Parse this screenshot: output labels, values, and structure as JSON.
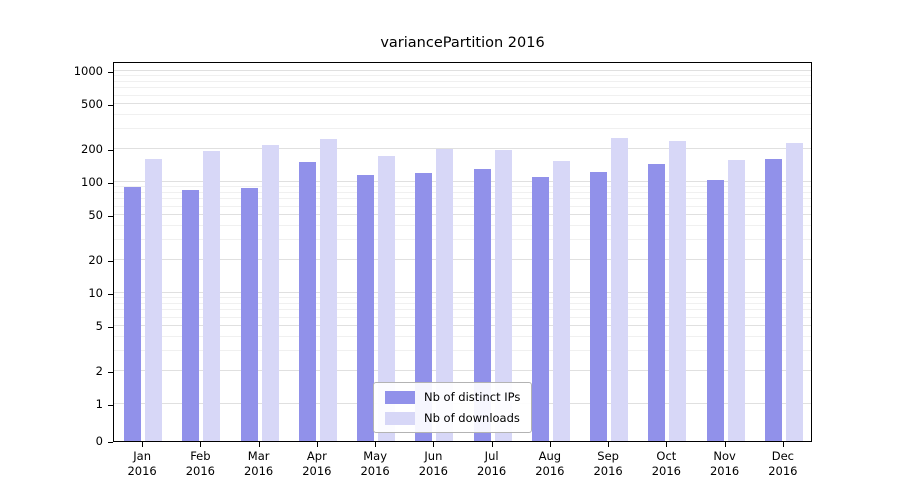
{
  "chart_data": {
    "type": "bar",
    "title": "variancePartition 2016",
    "categories": [
      "Jan 2016",
      "Feb 2016",
      "Mar 2016",
      "Apr 2016",
      "May 2016",
      "Jun 2016",
      "Jul 2016",
      "Aug 2016",
      "Sep 2016",
      "Oct 2016",
      "Nov 2016",
      "Dec 2016"
    ],
    "series": [
      {
        "name": "Nb of distinct IPs",
        "color": "#9191ea",
        "values": [
          90,
          85,
          88,
          150,
          115,
          120,
          130,
          112,
          122,
          145,
          105,
          160
        ]
      },
      {
        "name": "Nb of downloads",
        "color": "#d7d7f7",
        "values": [
          160,
          190,
          215,
          245,
          172,
          197,
          193,
          155,
          248,
          235,
          157,
          225
        ]
      }
    ],
    "xlabel": "",
    "ylabel": "",
    "yscale": "log (symlog, linear below 1)",
    "ylim": [
      0,
      1230
    ],
    "yticks": [
      0,
      1,
      2,
      5,
      10,
      20,
      50,
      100,
      200,
      500,
      1000
    ],
    "grid": "horizontal major and minor log gridlines",
    "legend_position": "lower center inside plot"
  },
  "colors": {
    "grid_major": "#e0e0e0",
    "grid_minor": "#f0f0f0",
    "axis": "#000000",
    "legend_border": "#b3b3b3"
  }
}
